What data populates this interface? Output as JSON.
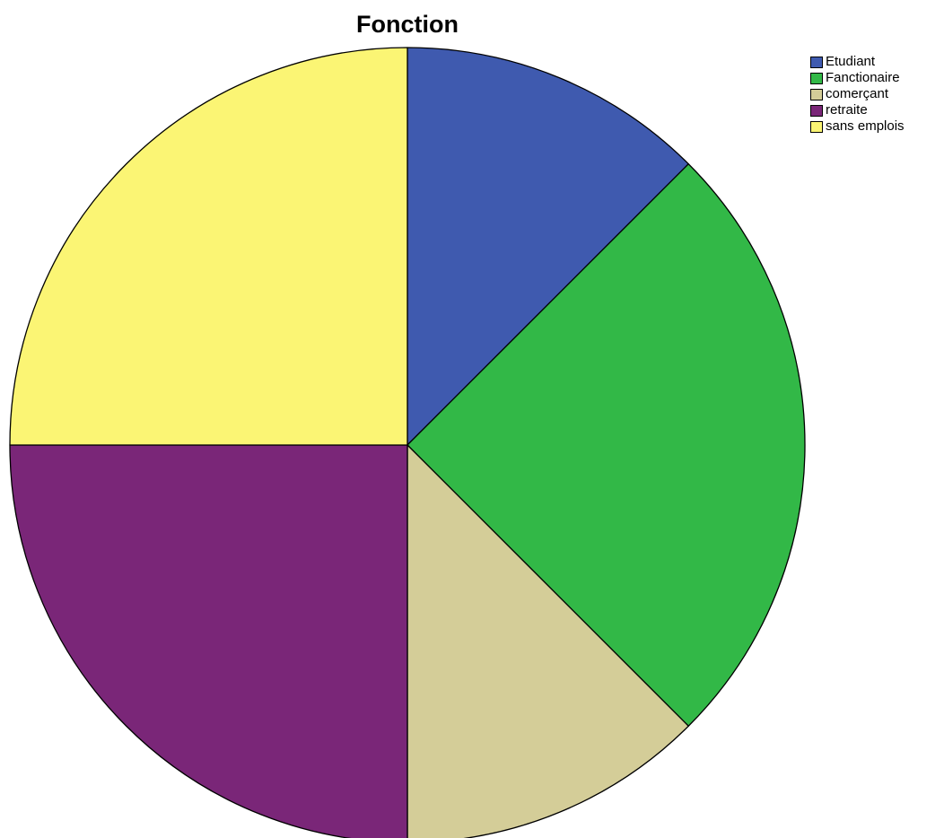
{
  "chart_data": {
    "type": "pie",
    "title": "Fonction",
    "legend_position": "top-right",
    "start_angle": "12 o'clock, clockwise",
    "slices": [
      {
        "label": "Etudiant",
        "value": 12.5,
        "color": "#3f5aaf"
      },
      {
        "label": "Fanctionaire",
        "value": 25.0,
        "color": "#32b847"
      },
      {
        "label": "comerçant",
        "value": 12.5,
        "color": "#d4cd98"
      },
      {
        "label": "retraite",
        "value": 25.0,
        "color": "#7a2678"
      },
      {
        "label": "sans emplois",
        "value": 25.0,
        "color": "#fbf574"
      }
    ]
  }
}
